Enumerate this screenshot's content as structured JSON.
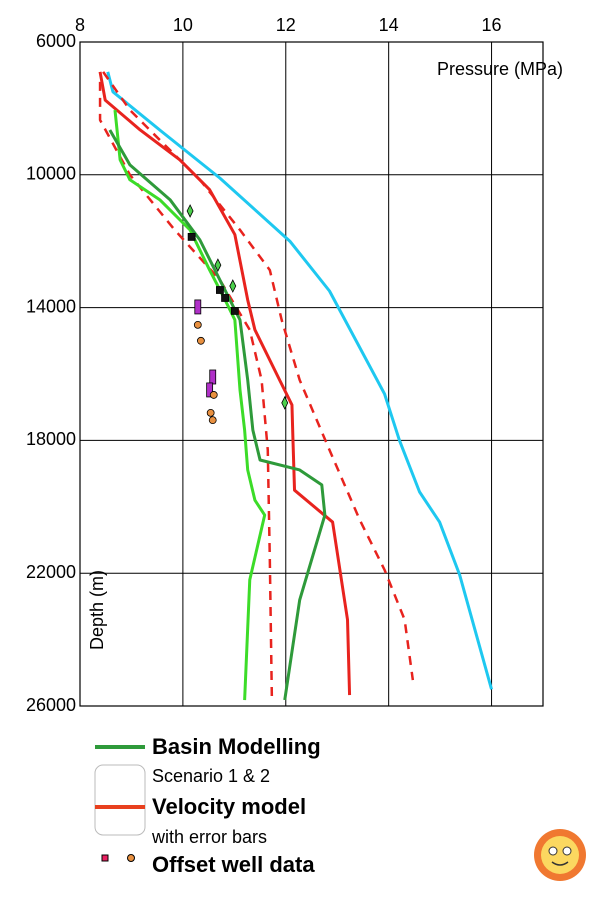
{
  "chart_data": {
    "type": "line",
    "x_label": "Pressure (MPa)",
    "y_label": "Depth (m)",
    "xlim": [
      8,
      17
    ],
    "xticks": [
      8,
      10,
      12,
      14,
      16
    ],
    "ylim": [
      6000,
      26000
    ],
    "yticks": [
      6000,
      10000,
      14000,
      18000,
      22000,
      26000
    ],
    "grid": true,
    "x_axis_position": "top",
    "y_inverted": true,
    "series": [
      {
        "color": "#1ec8f0",
        "dashed": false,
        "x": [
          8.54,
          8.64,
          9.55,
          10.72,
          12.08,
          12.85,
          13.92,
          14.21,
          14.6,
          14.99,
          15.38,
          16.0
        ],
        "y": [
          6900,
          7500,
          8650,
          10100,
          12000,
          13500,
          16600,
          18000,
          19550,
          20460,
          22050,
          25500
        ]
      },
      {
        "color": "#e8231e",
        "dashed": false,
        "x": [
          8.39,
          8.49,
          9.17,
          9.94,
          10.52,
          11.01,
          11.26,
          11.4,
          11.88,
          12.12,
          12.14,
          12.17,
          12.91,
          13.2,
          13.24
        ],
        "y": [
          6900,
          7750,
          8650,
          9550,
          10450,
          11800,
          13770,
          14670,
          16180,
          16930,
          18000,
          19500,
          20460,
          23400,
          25670
        ]
      },
      {
        "color": "#e8231e",
        "dashed": true,
        "x": [
          8.39,
          8.39,
          8.97,
          9.84,
          10.72,
          11.3,
          11.53,
          11.65,
          11.69,
          11.73
        ],
        "y": [
          7200,
          8350,
          10000,
          11660,
          13170,
          14670,
          16180,
          18290,
          21600,
          25820
        ]
      },
      {
        "color": "#e8231e",
        "dashed": true,
        "x": [
          8.45,
          8.97,
          9.55,
          10.33,
          11.11,
          11.69,
          11.92,
          12.27,
          12.85,
          13.44,
          13.92,
          14.31,
          14.47
        ],
        "y": [
          6900,
          8050,
          8950,
          10150,
          11660,
          12870,
          14370,
          16180,
          18290,
          20400,
          21900,
          23400,
          25220
        ]
      },
      {
        "color": "#3cdc28",
        "dashed": false,
        "x": [
          8.68,
          8.78,
          8.97,
          9.55,
          10.14,
          10.52,
          10.82,
          11.01,
          11.11,
          11.2,
          11.26,
          11.4,
          11.59,
          11.3,
          11.2
        ],
        "y": [
          8050,
          9550,
          10150,
          10750,
          11660,
          12870,
          13770,
          14370,
          16480,
          17690,
          18890,
          19800,
          20250,
          22200,
          25820
        ]
      },
      {
        "color": "#2e9a3a",
        "dashed": false,
        "x": [
          8.58,
          8.97,
          9.75,
          10.33,
          10.72,
          11.11,
          11.26,
          11.36,
          11.5,
          12.27,
          12.7,
          12.76,
          12.27,
          11.98
        ],
        "y": [
          8650,
          9700,
          10750,
          11960,
          13170,
          14370,
          16180,
          17690,
          18590,
          18890,
          19340,
          20250,
          22810,
          25820
        ]
      }
    ],
    "points": [
      {
        "marker": "square",
        "color": "#111111",
        "x": [
          10.17,
          10.72,
          10.82,
          11.01
        ],
        "y": [
          11870,
          13470,
          13710,
          14100
        ]
      },
      {
        "marker": "diamond",
        "color": "#4cd04c",
        "x": [
          10.14,
          10.68,
          10.97,
          11.98
        ],
        "y": [
          11090,
          12720,
          13350,
          16870
        ]
      },
      {
        "marker": "rect",
        "color": "#b030c8",
        "x": [
          10.29,
          10.58,
          10.52
        ],
        "y": [
          13980,
          16090,
          16480
        ]
      },
      {
        "marker": "circle",
        "color": "#e89040",
        "x": [
          10.29,
          10.35,
          10.6,
          10.54,
          10.58
        ],
        "y": [
          14520,
          15000,
          16630,
          17170,
          17390
        ]
      }
    ],
    "legend": {
      "basin_title": "Basin  Modelling",
      "basin_sub": "Scenario  1 & 2",
      "basin_color": "#2e9a3a",
      "velocity_title": "Velocity model",
      "velocity_sub": "with error bars",
      "velocity_color": "#e8401e",
      "well_title": "Offset well data"
    }
  }
}
